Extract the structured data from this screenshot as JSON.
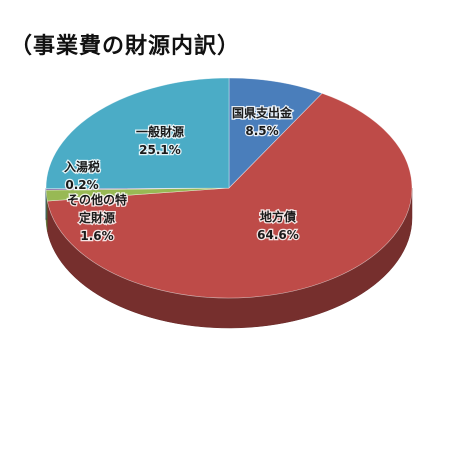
{
  "chart_data": {
    "type": "pie",
    "title": "（事業費の財源内訳）",
    "slices": [
      {
        "label": "国県支出金",
        "value": 8.5,
        "value_label": "8.5%",
        "color": "#4a7ebb"
      },
      {
        "label": "地方債",
        "value": 64.6,
        "value_label": "64.6%",
        "color": "#be4b48"
      },
      {
        "label": "その他の特定財源",
        "label_lines": [
          "その他の特",
          "定財源"
        ],
        "value": 1.6,
        "value_label": "1.6%",
        "color": "#98b954"
      },
      {
        "label": "入湯税",
        "value": 0.2,
        "value_label": "0.2%",
        "color": "#7d60a0"
      },
      {
        "label": "一般財源",
        "value": 25.1,
        "value_label": "25.1%",
        "color": "#4bacc6"
      }
    ],
    "style": "3d"
  }
}
